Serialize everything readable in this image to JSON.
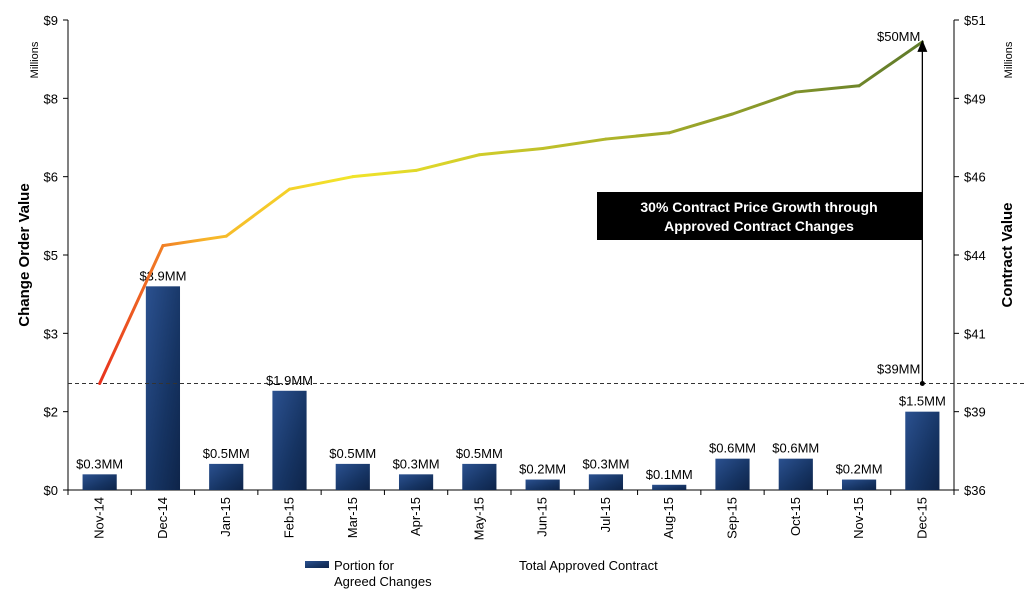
{
  "chart_data": {
    "type": "bar",
    "categories": [
      "Nov-14",
      "Dec-14",
      "Jan-15",
      "Feb-15",
      "Mar-15",
      "Apr-15",
      "May-15",
      "Jun-15",
      "Jul-15",
      "Aug-15",
      "Sep-15",
      "Oct-15",
      "Nov-15",
      "Dec-15"
    ],
    "series": [
      {
        "name": "Portion for Agreed Changes",
        "type": "bar",
        "axis": "left",
        "color": "#1a3a6b",
        "values": [
          0.3,
          3.9,
          0.5,
          1.9,
          0.5,
          0.3,
          0.5,
          0.2,
          0.3,
          0.1,
          0.6,
          0.6,
          0.2,
          1.5
        ],
        "labels": [
          "$0.3MM",
          "$3.9MM",
          "$0.5MM",
          "$1.9MM",
          "$0.5MM",
          "$0.3MM",
          "$0.5MM",
          "$0.2MM",
          "$0.3MM",
          "$0.1MM",
          "$0.6MM",
          "$0.6MM",
          "$0.2MM",
          "$1.5MM"
        ]
      },
      {
        "name": "Total Approved Contract",
        "type": "line",
        "axis": "right",
        "color_start": "#e8321e",
        "color_mid": "#f2e52a",
        "color_end": "#5f7a2a",
        "values": [
          39.4,
          43.8,
          44.1,
          45.6,
          46.0,
          46.2,
          46.7,
          46.9,
          47.2,
          47.4,
          48.0,
          48.7,
          48.9,
          50.3
        ]
      }
    ],
    "left_axis": {
      "label": "Change Order Value",
      "units": "Millions",
      "ticks": [
        "$0",
        "$2",
        "$3",
        "$5",
        "$6",
        "$8",
        "$9"
      ],
      "ylim": [
        0,
        9
      ]
    },
    "right_axis": {
      "label": "Contract Value",
      "units": "Millions",
      "ticks": [
        "$36",
        "$39",
        "$41",
        "$44",
        "$46",
        "$49",
        "$51"
      ],
      "ylim": [
        36,
        51
      ]
    },
    "reference_line": {
      "value": 39.4,
      "axis": "right",
      "style": "dashed"
    },
    "annotations": {
      "start_label": "$39MM",
      "end_label": "$50MM",
      "callout_line1": "30% Contract Price Growth through",
      "callout_line2": "Approved Contract Changes"
    },
    "legend": {
      "position": "bottom",
      "bar_line1": "Portion for",
      "bar_line2": "Agreed Changes",
      "line": "Total Approved Contract"
    }
  }
}
